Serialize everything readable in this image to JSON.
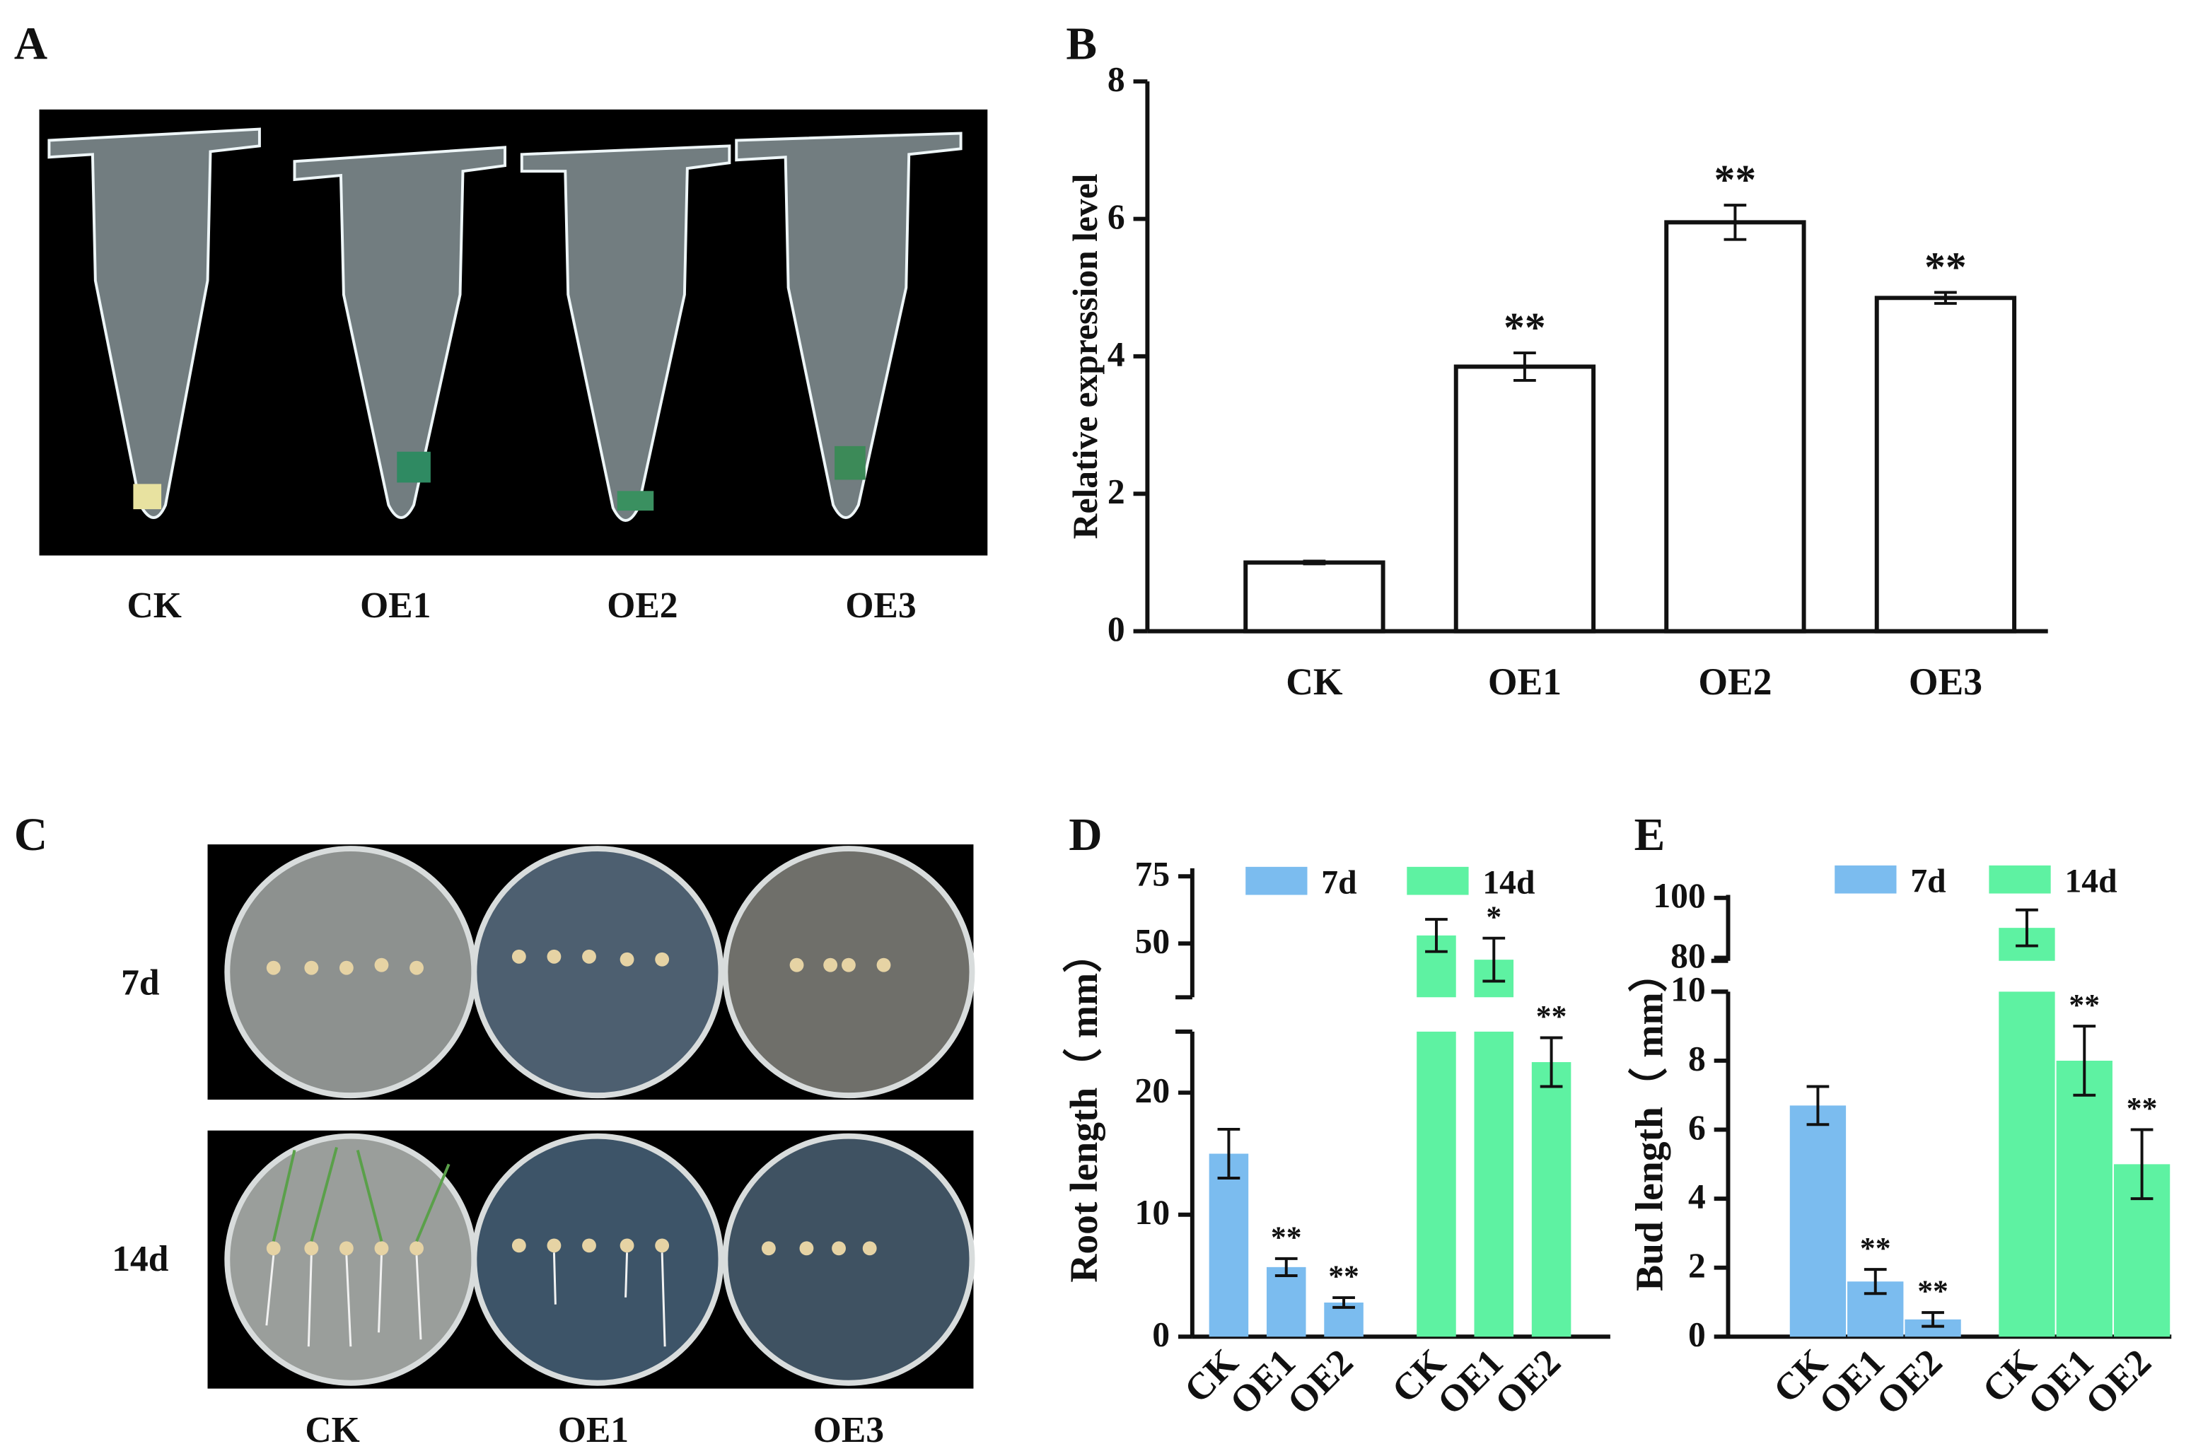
{
  "panels": {
    "A": {
      "letter": "A",
      "labels": [
        "CK",
        "OE1",
        "OE2",
        "OE3"
      ]
    },
    "C": {
      "letter": "C",
      "rows": [
        "7d",
        "14d"
      ],
      "labels": [
        "CK",
        "OE1",
        "OE3"
      ]
    }
  },
  "chart_data": [
    {
      "label": "B",
      "type": "bar",
      "ylabel": "Relative expression level",
      "categories": [
        "CK",
        "OE1",
        "OE2",
        "OE3"
      ],
      "values": [
        1.0,
        3.85,
        5.95,
        4.85
      ],
      "error": [
        0.02,
        0.2,
        0.25,
        0.08
      ],
      "significance": [
        null,
        "**",
        "**",
        "**"
      ],
      "color": "#ffffff",
      "ylim": [
        0,
        8
      ],
      "yticks": [
        0,
        2,
        4,
        6,
        8
      ]
    },
    {
      "label": "D",
      "type": "grouped_bar",
      "ylabel": "Root length（ mm）",
      "categories": [
        "CK",
        "OE1",
        "OE2"
      ],
      "series": [
        {
          "name": "7d",
          "color": "#7bbcef",
          "values": [
            15,
            5.7,
            2.8
          ],
          "error": [
            2,
            0.7,
            0.4
          ],
          "significance": [
            null,
            "**",
            "**"
          ]
        },
        {
          "name": "14d",
          "color": "#5ef2a2",
          "values": [
            53,
            44,
            22.5
          ],
          "error": [
            6,
            8,
            2
          ],
          "significance": [
            null,
            "*",
            "**"
          ]
        }
      ],
      "ylim_segments": [
        [
          0,
          25
        ],
        [
          30,
          78
        ]
      ],
      "yticks": [
        0,
        10,
        20,
        50,
        75
      ]
    },
    {
      "label": "E",
      "type": "grouped_bar",
      "ylabel": "Bud length（ mm）",
      "categories": [
        "CK",
        "OE1",
        "OE2"
      ],
      "series": [
        {
          "name": "7d",
          "color": "#7bbcef",
          "values": [
            6.7,
            1.6,
            0.5
          ],
          "error": [
            0.55,
            0.35,
            0.2
          ],
          "significance": [
            null,
            "**",
            "**"
          ]
        },
        {
          "name": "14d",
          "color": "#5ef2a2",
          "values": [
            90,
            8,
            5
          ],
          "error": [
            6,
            1,
            1
          ],
          "significance": [
            null,
            "**",
            "**"
          ]
        }
      ],
      "ylim_segments": [
        [
          0,
          10
        ],
        [
          79,
          101
        ]
      ],
      "yticks": [
        0,
        2,
        4,
        6,
        8,
        10,
        80,
        100
      ]
    }
  ]
}
